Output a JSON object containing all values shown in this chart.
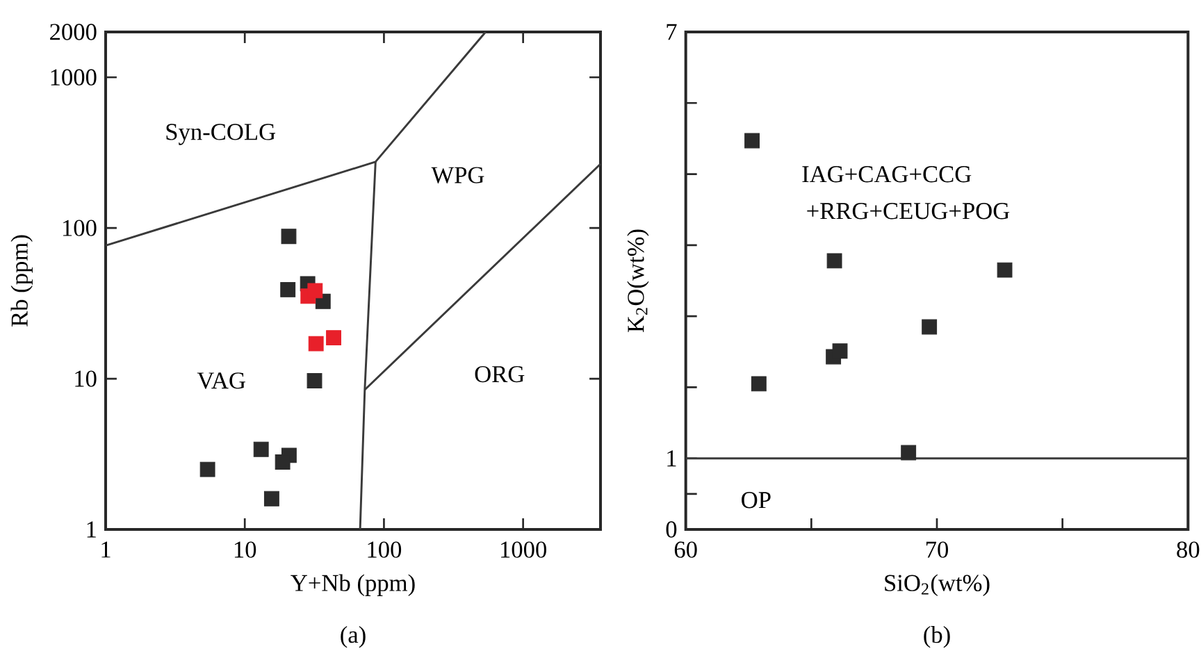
{
  "chart_data": [
    {
      "type": "scatter",
      "xlabel": "Y+Nb (ppm)",
      "ylabel": "Rb (ppm)",
      "log": "xy",
      "xlim": [
        1,
        3600
      ],
      "ylim": [
        1,
        2000
      ],
      "xticks": [
        1,
        10,
        100,
        1000
      ],
      "yticks": [
        1,
        10,
        100,
        1000,
        2000
      ],
      "marker": "square",
      "series": [
        {
          "type": "scatter",
          "color": "#2b2b2b",
          "x": [
            20.7,
            20.4,
            28.3,
            36.5,
            31.7,
            13.1,
            20.8,
            18.7,
            5.4,
            15.6
          ],
          "values": [
            88,
            39,
            42.7,
            32.6,
            9.7,
            3.4,
            3.1,
            2.8,
            2.5,
            1.6
          ]
        },
        {
          "type": "scatter",
          "color": "#e8202a",
          "x": [
            28.5,
            32,
            32.5,
            43.5
          ],
          "values": [
            35.3,
            38.4,
            17.1,
            18.7
          ]
        },
        {
          "type": "line",
          "color": "#3a3a3a",
          "marker": "none",
          "x": [
            1,
            87,
            538
          ],
          "values": [
            76.5,
            275,
            2000
          ]
        },
        {
          "type": "line",
          "color": "#3a3a3a",
          "marker": "none",
          "x": [
            87,
            72.8,
            67.4
          ],
          "values": [
            275,
            8.45,
            1
          ]
        },
        {
          "type": "line",
          "color": "#3a3a3a",
          "marker": "none",
          "x": [
            72.8,
            3600
          ],
          "values": [
            8.45,
            266
          ]
        }
      ],
      "annotations": [
        "Syn-COLG",
        "VAG",
        "WPG",
        "ORG",
        "(a)"
      ]
    },
    {
      "type": "scatter",
      "xlabel": "SiO$_{2}$(wt%)",
      "ylabel": "K$_{2}$O(wt%)",
      "xlim": [
        60,
        80
      ],
      "ylim": [
        0,
        7
      ],
      "xticks": [
        60,
        {
          "value": 65,
          "label": null
        },
        70,
        {
          "value": 75,
          "label": null
        },
        80
      ],
      "yticks": [
        0,
        {
          "value": 0.5,
          "label": null
        },
        1,
        {
          "value": 2,
          "label": null
        },
        {
          "value": 3,
          "label": null
        },
        {
          "value": 4,
          "label": null
        },
        {
          "value": 5,
          "label": null
        },
        {
          "value": 6,
          "label": null
        },
        7
      ],
      "marker": "square",
      "series": [
        {
          "color": "#2b2b2b",
          "x": [
            62.64,
            62.91,
            65.92,
            65.88,
            66.14,
            68.87,
            69.7,
            72.7
          ],
          "values": [
            5.47,
            2.05,
            3.78,
            2.43,
            2.51,
            1.08,
            2.85,
            3.65
          ]
        }
      ],
      "ref_lines": [
        {
          "axis": "y",
          "value": 1,
          "color": "#3a3a3a"
        }
      ],
      "annotations": [
        "IAG+CAG+CCG",
        "+RRG+CEUG+POG",
        "OP",
        "(b)"
      ]
    }
  ]
}
